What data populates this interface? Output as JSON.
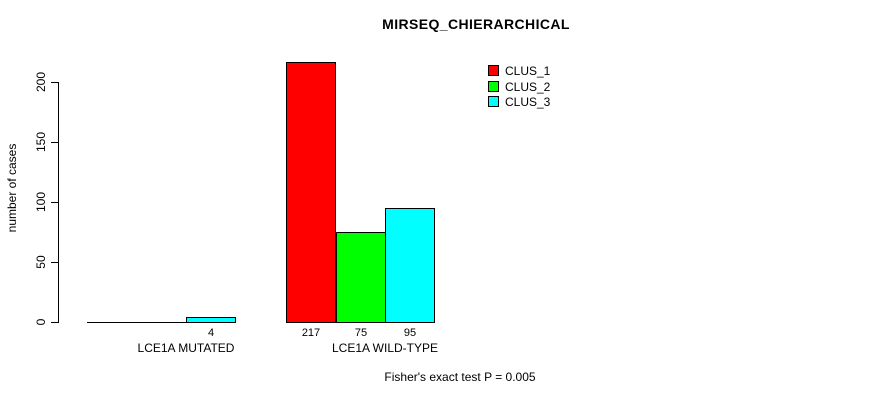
{
  "title": "MIRSEQ_CHIERARCHICAL",
  "footer": "Fisher's exact test P = 0.005",
  "chart_data": {
    "type": "bar",
    "title": "MIRSEQ_CHIERARCHICAL",
    "categories": [
      "LCE1A MUTATED",
      "LCE1A WILD-TYPE"
    ],
    "series": [
      {
        "name": "CLUS_1",
        "color": "#ff0000",
        "values": [
          0,
          217
        ]
      },
      {
        "name": "CLUS_2",
        "color": "#00ff00",
        "values": [
          0,
          75
        ]
      },
      {
        "name": "CLUS_3",
        "color": "#00ffff",
        "values": [
          4,
          95
        ]
      }
    ],
    "bar_labels": [
      [
        "",
        "",
        "4"
      ],
      [
        "217",
        "75",
        "95"
      ]
    ],
    "xlabel": "",
    "ylabel": "number of cases",
    "yticks": [
      0,
      50,
      100,
      150,
      200
    ],
    "ylim": [
      0,
      220
    ],
    "grid": false,
    "legend_position": "top-right",
    "annotation": "Fisher's exact test P = 0.005"
  }
}
